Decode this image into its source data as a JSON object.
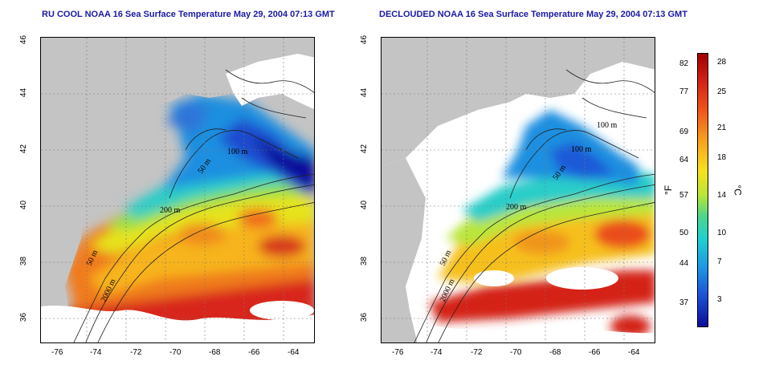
{
  "left_panel": {
    "title": "RU COOL NOAA 16 Sea Surface Temperature May 29, 2004 07:13 GMT"
  },
  "right_panel": {
    "title": "DECLOUDED NOAA 16 Sea Surface Temperature May 29, 2004 07:13 GMT"
  },
  "axes": {
    "x_ticks": [
      "-76",
      "-74",
      "-72",
      "-70",
      "-68",
      "-66",
      "-64"
    ],
    "y_ticks": [
      "46",
      "44",
      "42",
      "40",
      "38",
      "36"
    ]
  },
  "contours": {
    "c100": "100 m",
    "c50": "50 m",
    "c200": "200 m",
    "c2000": "2000 m"
  },
  "colorbar": {
    "fahrenheit_ticks": [
      "82",
      "77",
      "69",
      "64",
      "57",
      "50",
      "44",
      "37"
    ],
    "celsius_ticks": [
      "28",
      "25",
      "21",
      "18",
      "14",
      "10",
      "7",
      "3"
    ],
    "unit_f": "°F",
    "unit_c": "°C"
  },
  "colors": {
    "land": "#c4c4c4",
    "cloud": "#ffffff",
    "title": "#1a1aa6"
  }
}
